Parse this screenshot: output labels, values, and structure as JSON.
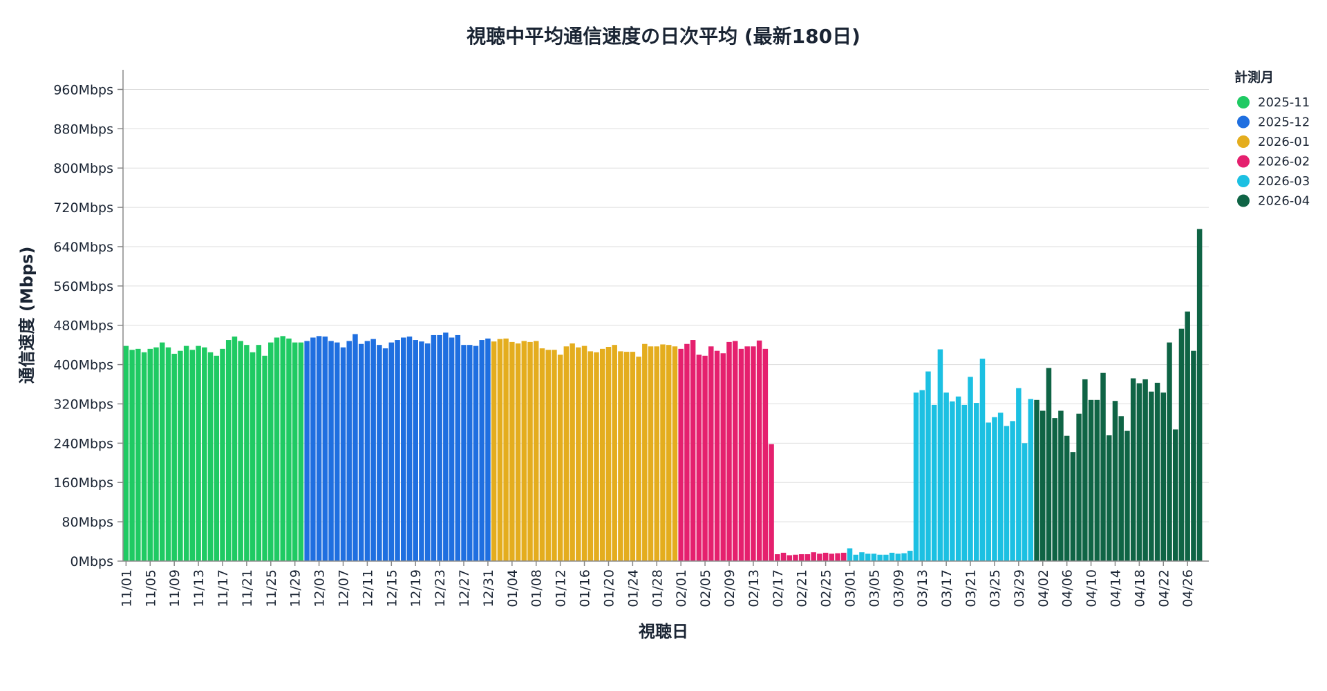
{
  "chart_data": {
    "type": "bar",
    "title": "視聴中平均通信速度の日次平均 (最新180日)",
    "xlabel": "視聴日",
    "ylabel": "通信速度 (Mbps)",
    "ylim": [
      0,
      1000
    ],
    "y_ticks": [
      0,
      80,
      160,
      240,
      320,
      400,
      480,
      560,
      640,
      720,
      800,
      880,
      960
    ],
    "y_tick_suffix": "Mbps",
    "grid": true,
    "legend": {
      "title": "計測月",
      "position": "right",
      "items": [
        {
          "label": "2025-11",
          "color": "#1fca63"
        },
        {
          "label": "2025-12",
          "color": "#1f6fe0"
        },
        {
          "label": "2026-01",
          "color": "#e4ad1e"
        },
        {
          "label": "2026-02",
          "color": "#e5206e"
        },
        {
          "label": "2026-03",
          "color": "#1cc0e2"
        },
        {
          "label": "2026-04",
          "color": "#0f6445"
        }
      ]
    },
    "series": [
      {
        "name": "2025-11",
        "start_date": "11/01",
        "values": [
          438,
          430,
          432,
          425,
          432,
          435,
          445,
          435,
          422,
          428,
          438,
          430,
          438,
          435,
          425,
          418,
          432,
          450,
          457,
          448,
          440,
          425,
          440,
          418,
          445,
          455,
          458,
          453,
          445,
          445
        ]
      },
      {
        "name": "2025-12",
        "start_date": "12/01",
        "values": [
          448,
          455,
          458,
          457,
          448,
          445,
          435,
          448,
          462,
          442,
          448,
          452,
          440,
          433,
          445,
          450,
          455,
          457,
          450,
          447,
          443,
          460,
          460,
          465,
          455,
          460,
          440,
          440,
          438,
          450,
          453
        ]
      },
      {
        "name": "2026-01",
        "start_date": "01/01",
        "values": [
          447,
          452,
          453,
          446,
          443,
          448,
          446,
          448,
          433,
          430,
          430,
          420,
          437,
          443,
          435,
          438,
          427,
          425,
          432,
          436,
          440,
          427,
          426,
          426,
          416,
          442,
          437,
          437,
          441,
          440,
          437
        ]
      },
      {
        "name": "2026-02",
        "start_date": "02/01",
        "values": [
          432,
          442,
          450,
          420,
          418,
          437,
          428,
          423,
          446,
          448,
          432,
          437,
          437,
          449,
          432,
          238,
          14,
          17,
          12,
          13,
          14,
          14,
          18,
          15,
          17,
          15,
          16,
          17
        ]
      },
      {
        "name": "2026-03",
        "start_date": "03/01",
        "values": [
          26,
          13,
          18,
          15,
          15,
          13,
          13,
          17,
          15,
          16,
          21,
          343,
          348,
          386,
          318,
          431,
          343,
          325,
          335,
          318,
          375,
          322,
          412,
          282,
          293,
          302,
          275,
          285,
          352,
          240,
          330
        ]
      },
      {
        "name": "2026-04",
        "start_date": "04/01",
        "values": [
          328,
          306,
          393,
          291,
          306,
          255,
          222,
          300,
          370,
          328,
          328,
          383,
          256,
          326,
          295,
          265,
          372,
          362,
          370,
          345,
          363,
          343,
          445,
          268,
          473,
          508,
          428,
          676
        ]
      }
    ],
    "x_tick_labels": [
      "11/01",
      "11/05",
      "11/09",
      "11/13",
      "11/17",
      "11/21",
      "11/25",
      "11/29",
      "12/03",
      "12/07",
      "12/11",
      "12/15",
      "12/19",
      "12/23",
      "12/27",
      "12/31",
      "01/04",
      "01/08",
      "01/12",
      "01/16",
      "01/20",
      "01/24",
      "01/28",
      "02/01",
      "02/05",
      "02/09",
      "02/13",
      "02/17",
      "02/21",
      "02/25",
      "03/01",
      "03/05",
      "03/09",
      "03/13",
      "03/17",
      "03/21",
      "03/25",
      "03/29",
      "04/02",
      "04/06",
      "04/10",
      "04/14",
      "04/18",
      "04/22",
      "04/26"
    ]
  }
}
